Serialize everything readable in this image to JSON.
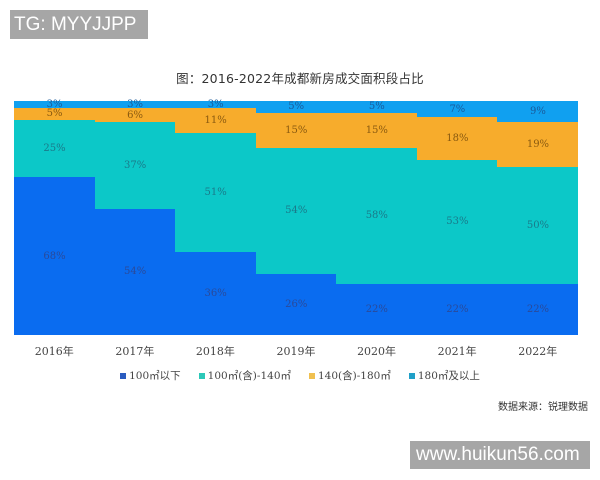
{
  "watermark_top": "TG: MYYJJPP",
  "watermark_bottom": "www.huikun56.com",
  "title": "图：2016-2022年成都新房成交面积段占比",
  "source": "数据来源：锐理数据",
  "colors": {
    "lt100": "#0a6cf0",
    "100to140": "#0cc8c8",
    "140to180": "#f7ac2c",
    "gte180": "#10a0f0"
  },
  "chart_data": {
    "type": "bar",
    "stacked": true,
    "percent": true,
    "title": "图：2016-2022年成都新房成交面积段占比",
    "xlabel": "",
    "ylabel": "",
    "ylim": [
      0,
      100
    ],
    "grid": false,
    "legend_position": "bottom",
    "categories": [
      "2016年",
      "2017年",
      "2018年",
      "2019年",
      "2020年",
      "2021年",
      "2022年"
    ],
    "series": [
      {
        "name": "100㎡以下",
        "color": "#0a6cf0",
        "values": [
          68,
          54,
          36,
          26,
          22,
          22,
          22
        ]
      },
      {
        "name": "100㎡(含)-140㎡",
        "color": "#0cc8c8",
        "values": [
          25,
          37,
          51,
          54,
          58,
          53,
          50
        ]
      },
      {
        "name": "140(含)-180㎡",
        "color": "#f7ac2c",
        "values": [
          5,
          6,
          11,
          15,
          15,
          18,
          19
        ]
      },
      {
        "name": "180㎡及以上",
        "color": "#10a0f0",
        "values": [
          3,
          3,
          3,
          5,
          5,
          7,
          9
        ]
      }
    ],
    "data_labels": true,
    "annotations": [
      "数据来源：锐理数据"
    ]
  }
}
